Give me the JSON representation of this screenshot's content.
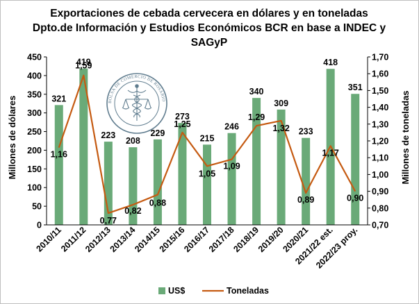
{
  "chart_data": {
    "type": "bar+line",
    "title_lines": [
      "Exportaciones de cebada cervecera en dólares y en toneladas",
      "Dpto.de Información y Estudios Económicos BCR en base a INDEC y",
      "SAGyP"
    ],
    "categories": [
      "2010/11",
      "2011/12",
      "2012/13",
      "2013/14",
      "2014/15",
      "2015/16",
      "2016/17",
      "2017/18",
      "2018/19",
      "2019/20",
      "2020/21",
      "2021/22 est.",
      "2022/23 proy."
    ],
    "series": [
      {
        "name": "US$",
        "type": "bar",
        "axis": "left",
        "color": "#6aaa78",
        "values": [
          321,
          419,
          223,
          208,
          229,
          273,
          215,
          246,
          340,
          309,
          233,
          418,
          351
        ],
        "labels": [
          "321",
          "419",
          "223",
          "208",
          "229",
          "273",
          "215",
          "246",
          "340",
          "309",
          "233",
          "418",
          "351"
        ]
      },
      {
        "name": "Toneladas",
        "type": "line",
        "axis": "right",
        "color": "#c55a11",
        "values": [
          1.16,
          1.59,
          0.77,
          0.82,
          0.88,
          1.25,
          1.05,
          1.09,
          1.29,
          1.32,
          0.89,
          1.17,
          0.9
        ],
        "labels": [
          "1,16",
          "1,59",
          "0,77",
          "0,82",
          "0,88",
          "1,25",
          "1,05",
          "1,09",
          "1,29",
          "1,32",
          "0,89",
          "1,17",
          "0,90"
        ]
      }
    ],
    "y_left": {
      "label": "Millones de dólares",
      "range": [
        0,
        450
      ],
      "ticks": [
        "0",
        "50",
        "100",
        "150",
        "200",
        "250",
        "300",
        "350",
        "400",
        "450"
      ]
    },
    "y_right": {
      "label": "Millones de toneladas",
      "range": [
        0.7,
        1.7
      ],
      "ticks": [
        "0,70",
        "0,80",
        "0,90",
        "1,00",
        "1,10",
        "1,20",
        "1,30",
        "1,40",
        "1,50",
        "1,60",
        "1,70"
      ]
    },
    "grid": false,
    "legend_position": "bottom"
  },
  "watermark": {
    "text": "BOLSA DE COMERCIO DE ROSARIO",
    "icon": "caduceus-seal-icon",
    "color": "#5f7c8e"
  }
}
